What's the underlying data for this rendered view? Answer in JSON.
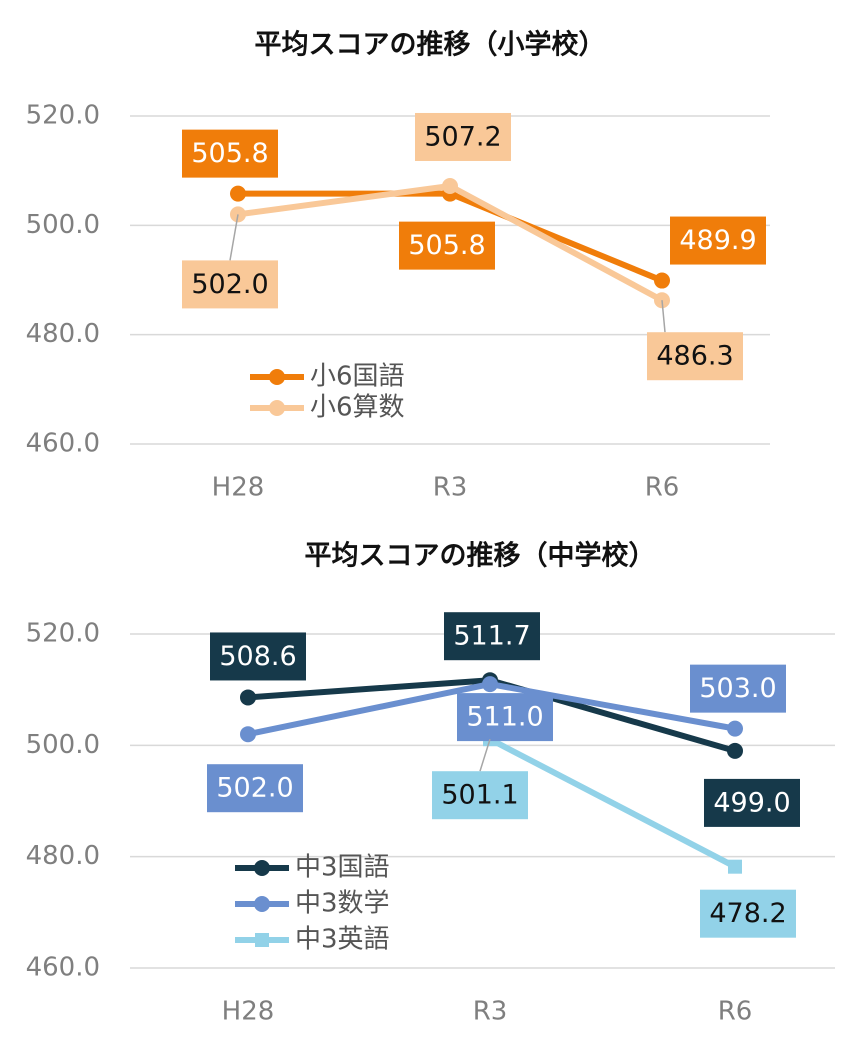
{
  "chart_data": [
    {
      "type": "line",
      "title": "平均スコアの推移（小学校）",
      "categories": [
        "H28",
        "R3",
        "R6"
      ],
      "series": [
        {
          "name": "小6国語",
          "color": "#f07d0a",
          "values": [
            505.8,
            505.8,
            489.9
          ],
          "value_labels": [
            "505.8",
            "505.8",
            "489.9"
          ],
          "label_text_color": "#ffffff",
          "marker": "circle"
        },
        {
          "name": "小6算数",
          "color": "#f9c898",
          "values": [
            502.0,
            507.2,
            486.3
          ],
          "value_labels": [
            "502.0",
            "507.2",
            "486.3"
          ],
          "label_text_color": "#111111",
          "marker": "circle"
        }
      ],
      "ylim": [
        460,
        520
      ],
      "yticks": [
        {
          "value": 460,
          "label": "460.0"
        },
        {
          "value": 480,
          "label": "480.0"
        },
        {
          "value": 500,
          "label": "500.0"
        },
        {
          "value": 520,
          "label": "520.0"
        }
      ],
      "grid": true
    },
    {
      "type": "line",
      "title": "平均スコアの推移（中学校）",
      "categories": [
        "H28",
        "R3",
        "R6"
      ],
      "series": [
        {
          "name": "中3国語",
          "color": "#16394a",
          "values": [
            508.6,
            511.7,
            499.0
          ],
          "value_labels": [
            "508.6",
            "511.7",
            "499.0"
          ],
          "label_text_color": "#ffffff",
          "marker": "circle"
        },
        {
          "name": "中3数学",
          "color": "#6a8fcf",
          "values": [
            502.0,
            511.0,
            503.0
          ],
          "value_labels": [
            "502.0",
            "511.0",
            "503.0"
          ],
          "label_text_color": "#ffffff",
          "marker": "circle"
        },
        {
          "name": "中3英語",
          "color": "#92d2e8",
          "values": [
            null,
            501.1,
            478.2
          ],
          "value_labels": [
            null,
            "501.1",
            "478.2"
          ],
          "label_text_color": "#111111",
          "marker": "square"
        }
      ],
      "ylim": [
        460,
        520
      ],
      "yticks": [
        {
          "value": 460,
          "label": "460.0"
        },
        {
          "value": 480,
          "label": "480.0"
        },
        {
          "value": 500,
          "label": "500.0"
        },
        {
          "value": 520,
          "label": "520.0"
        }
      ],
      "grid": true
    }
  ]
}
